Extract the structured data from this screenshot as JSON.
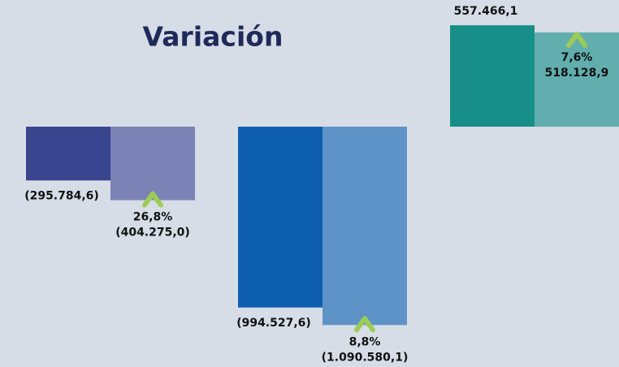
{
  "chart_data": {
    "type": "paired-bar",
    "title": "Variación",
    "series": [
      {
        "colors": [
          "#3a4590",
          "#0f5fb0",
          "#178e87"
        ],
        "values": [
          -295784.6,
          -994527.6,
          557466.1
        ],
        "value_labels": [
          "(295.784,6)",
          "(994.527,6)",
          "557.466,1"
        ]
      },
      {
        "colors": [
          "#7a82b6",
          "#5e93c8",
          "#62aeae"
        ],
        "values": [
          -404275.0,
          -1090580.1,
          518128.9
        ],
        "value_labels": [
          "(404.275,0)",
          "(1.090.580,1)",
          "518.128,9"
        ]
      }
    ],
    "variation": {
      "color": "#9ccc55",
      "values": [
        26.8,
        8.8,
        7.6
      ],
      "value_labels": [
        "26,8%",
        "8,8%",
        "7,6%"
      ]
    }
  }
}
